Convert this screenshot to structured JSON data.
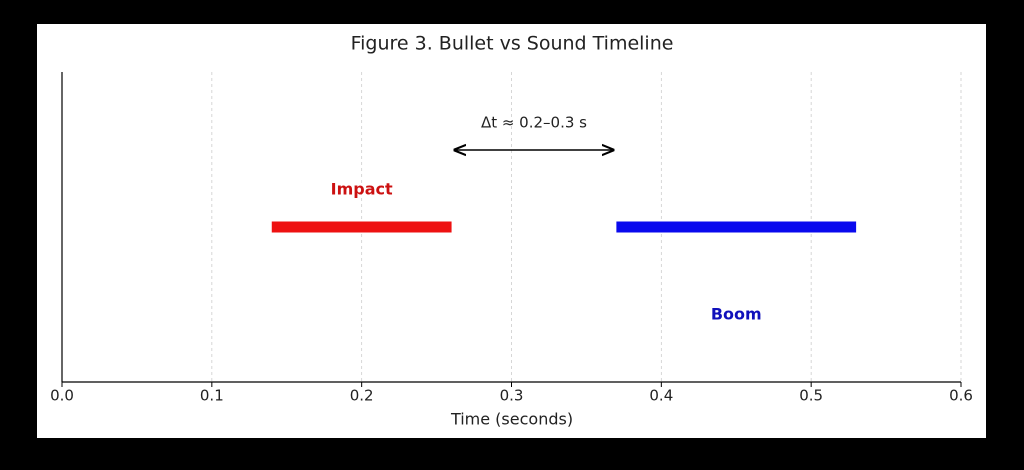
{
  "chart_data": {
    "type": "timeline",
    "title": "Figure 3. Bullet vs Sound Timeline",
    "xlabel": "Time (seconds)",
    "xlim": [
      0,
      0.6
    ],
    "xticks": [
      {
        "value": 0,
        "label": "0.0"
      },
      0.1,
      0.2,
      0.3,
      0.4,
      0.5,
      0.6
    ],
    "grid": true,
    "series": [
      {
        "name": "Impact",
        "color": "#ee1111",
        "label_color": "#cc1111",
        "values": [
          0.14,
          0.26
        ]
      },
      {
        "name": "Boom",
        "color": "#0a0aee",
        "label_color": "#1010bb",
        "values": [
          0.37,
          0.53
        ]
      }
    ],
    "annotation": {
      "text": "Δt ≈ 0.2–0.3 s",
      "x": [
        0.262,
        0.368
      ]
    }
  }
}
